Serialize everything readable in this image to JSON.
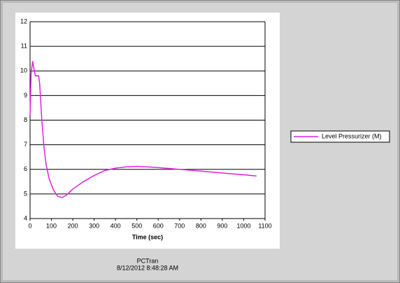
{
  "chart_data": {
    "type": "line",
    "x_label": "Time (sec)",
    "footer": [
      "PCTran",
      "8/12/2012 8:48:28 AM"
    ],
    "legend": "right",
    "grid": true,
    "xlim": [
      0,
      1100
    ],
    "xticks": [
      0,
      100,
      200,
      300,
      400,
      500,
      600,
      700,
      800,
      900,
      1000,
      1100
    ],
    "ylim": [
      4,
      12
    ],
    "yticks": [
      4,
      5,
      6,
      7,
      8,
      9,
      10,
      11,
      12
    ],
    "x": [
      0,
      5,
      12,
      20,
      25,
      40,
      45,
      55,
      65,
      75,
      90,
      110,
      130,
      150,
      170,
      200,
      250,
      300,
      350,
      400,
      450,
      500,
      550,
      600,
      700,
      800,
      900,
      1000,
      1060
    ],
    "series": [
      {
        "name": "Level Pressurizer (M)",
        "color": "#e020e0",
        "values": [
          8.2,
          9.9,
          10.4,
          10.0,
          9.8,
          9.8,
          9.5,
          8.0,
          6.9,
          6.2,
          5.6,
          5.15,
          4.9,
          4.85,
          4.95,
          5.2,
          5.5,
          5.75,
          5.95,
          6.05,
          6.1,
          6.12,
          6.1,
          6.07,
          6.0,
          5.93,
          5.85,
          5.78,
          5.73
        ]
      }
    ]
  }
}
